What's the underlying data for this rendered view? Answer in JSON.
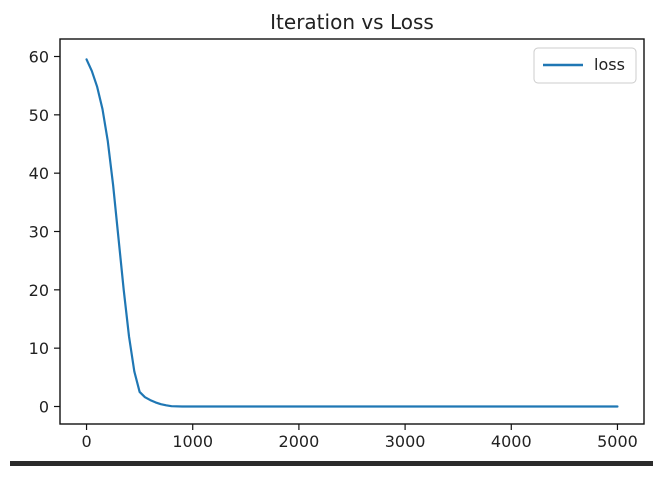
{
  "chart_data": {
    "type": "line",
    "title": "Iteration vs Loss",
    "xlabel": "",
    "ylabel": "",
    "xlim": [
      -250,
      5250
    ],
    "ylim": [
      -3,
      63
    ],
    "xticks": [
      0,
      1000,
      2000,
      3000,
      4000,
      5000
    ],
    "xtick_labels": [
      "0",
      "1000",
      "2000",
      "3000",
      "4000",
      "5000"
    ],
    "yticks": [
      0,
      10,
      20,
      30,
      40,
      50,
      60
    ],
    "ytick_labels": [
      "0",
      "10",
      "20",
      "30",
      "40",
      "50",
      "60"
    ],
    "grid": false,
    "legend": {
      "position": "upper right",
      "entries": [
        "loss"
      ]
    },
    "series": [
      {
        "name": "loss",
        "color": "#1f77b4",
        "x": [
          0,
          50,
          100,
          150,
          200,
          250,
          300,
          350,
          400,
          450,
          500,
          550,
          600,
          650,
          700,
          750,
          800,
          900,
          1000,
          1500,
          2000,
          2500,
          3000,
          3500,
          4000,
          4500,
          5000
        ],
        "y": [
          59.5,
          57.5,
          54.8,
          51.0,
          45.5,
          38.0,
          29.0,
          20.0,
          12.0,
          6.0,
          2.5,
          1.6,
          1.1,
          0.7,
          0.4,
          0.2,
          0.05,
          0.0,
          0.0,
          0.0,
          0.0,
          0.0,
          0.0,
          0.0,
          0.0,
          0.0,
          0.0
        ]
      }
    ]
  }
}
